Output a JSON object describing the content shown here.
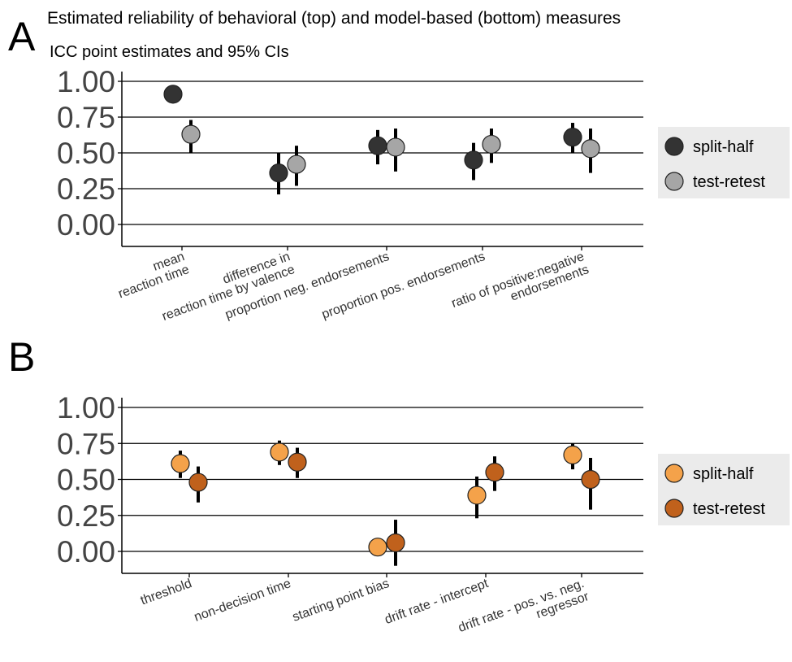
{
  "panels": [
    {
      "letter": "A",
      "title": "Estimated reliability of behavioral (top) and model-based (bottom) measures",
      "subtitle": "ICC point estimates and 95% CIs"
    },
    {
      "letter": "B",
      "title": "",
      "subtitle": ""
    }
  ],
  "chart_data": [
    {
      "type": "scatter",
      "title": "Estimated reliability of behavioral (top) and model-based (bottom) measures",
      "subtitle": "ICC point estimates and 95% CIs",
      "ylim": [
        -0.15,
        1.05
      ],
      "yticks": [
        "1.00",
        "0.75",
        "0.50",
        "0.25",
        "0.00"
      ],
      "grid": "horizontal",
      "legend_placement": "right",
      "categories": [
        [
          "mean",
          "reaction time"
        ],
        [
          "difference in",
          "reaction time by valence"
        ],
        [
          "proportion neg. endorsements"
        ],
        [
          "proportion pos. endorsements"
        ],
        [
          "ratio of positive:negative",
          "endorsements"
        ]
      ],
      "series": [
        {
          "name": "split-half",
          "color": "#333333",
          "values": [
            0.91,
            0.36,
            0.55,
            0.45,
            0.61
          ],
          "ci_low": [
            0.89,
            0.21,
            0.42,
            0.31,
            0.5
          ],
          "ci_high": [
            0.93,
            0.5,
            0.66,
            0.57,
            0.71
          ]
        },
        {
          "name": "test-retest",
          "color": "#A6A6A6",
          "values": [
            0.63,
            0.42,
            0.54,
            0.56,
            0.53
          ],
          "ci_low": [
            0.5,
            0.27,
            0.37,
            0.43,
            0.36
          ],
          "ci_high": [
            0.73,
            0.55,
            0.67,
            0.67,
            0.67
          ]
        }
      ]
    },
    {
      "type": "scatter",
      "ylim": [
        -0.15,
        1.05
      ],
      "yticks": [
        "1.00",
        "0.75",
        "0.50",
        "0.25",
        "0.00"
      ],
      "grid": "horizontal",
      "legend_placement": "right",
      "categories": [
        [
          "threshold"
        ],
        [
          "non-decision time"
        ],
        [
          "starting point bias"
        ],
        [
          "drift rate - intercept"
        ],
        [
          "drift rate - pos. vs. neg.",
          "regressor"
        ]
      ],
      "series": [
        {
          "name": "split-half",
          "color": "#F4A24A",
          "values": [
            0.61,
            0.69,
            0.03,
            0.39,
            0.67
          ],
          "ci_low": [
            0.51,
            0.6,
            0.01,
            0.23,
            0.57
          ],
          "ci_high": [
            0.7,
            0.77,
            0.05,
            0.52,
            0.75
          ]
        },
        {
          "name": "test-retest",
          "color": "#C0611C",
          "values": [
            0.48,
            0.62,
            0.06,
            0.55,
            0.5
          ],
          "ci_low": [
            0.34,
            0.51,
            -0.1,
            0.42,
            0.29
          ],
          "ci_high": [
            0.59,
            0.72,
            0.22,
            0.66,
            0.65
          ]
        }
      ]
    }
  ]
}
